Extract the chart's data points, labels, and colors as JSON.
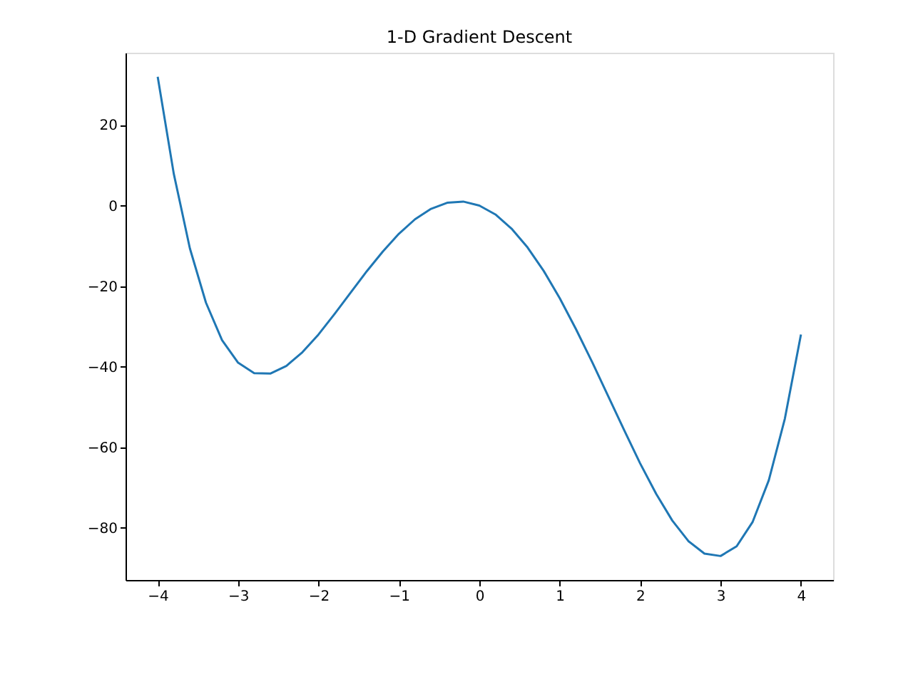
{
  "chart_data": {
    "type": "line",
    "title": "1-D Gradient Descent",
    "x": [
      -4.0,
      -3.8,
      -3.6,
      -3.4,
      -3.2,
      -3.0,
      -2.8,
      -2.6,
      -2.4,
      -2.2,
      -2.0,
      -1.8,
      -1.6,
      -1.4,
      -1.2,
      -1.0,
      -0.8,
      -0.6,
      -0.4,
      -0.2,
      0.0,
      0.2,
      0.4,
      0.6,
      0.8,
      1.0,
      1.2,
      1.4,
      1.6,
      1.8,
      2.0,
      2.2,
      2.4,
      2.6,
      2.8,
      3.0,
      3.2,
      3.4,
      3.6,
      3.8,
      4.0
    ],
    "series": [
      {
        "color": "#1f77b4",
        "values": [
          32,
          7.9,
          -10.6,
          -24.1,
          -33.4,
          -39,
          -41.6,
          -41.7,
          -39.8,
          -36.4,
          -32,
          -26.9,
          -21.6,
          -16.3,
          -11.4,
          -7,
          -3.4,
          -0.8,
          0.7,
          1.0,
          0,
          -2.2,
          -5.7,
          -10.4,
          -16.2,
          -23,
          -30.6,
          -38.7,
          -47.2,
          -55.7,
          -64,
          -71.6,
          -78.2,
          -83.3,
          -86.4,
          -87,
          -84.6,
          -78.5,
          -68.2,
          -52.9,
          -32
        ]
      }
    ],
    "xlim": [
      -4.4,
      4.4
    ],
    "ylim": [
      -92.95,
      37.95
    ],
    "xticks": [
      -4,
      -3,
      -2,
      -1,
      0,
      1,
      2,
      3,
      4
    ],
    "yticks": [
      -80,
      -60,
      -40,
      -20,
      0,
      20
    ],
    "grid": false,
    "marker": "none",
    "line_style": "solid"
  }
}
